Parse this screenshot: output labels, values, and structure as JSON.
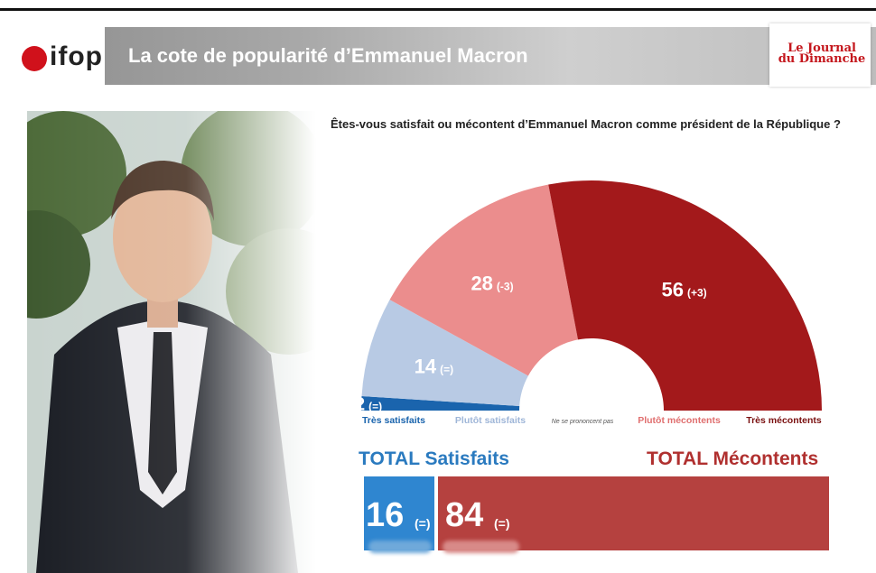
{
  "header": {
    "brand": "ifop",
    "title": "La cote de popularité d’Emmanuel Macron",
    "partner_line1": "Le Journal",
    "partner_line2": "du Dimanche"
  },
  "chart_data": {
    "type": "pie",
    "variant": "half-donut",
    "title": "Êtes-vous satisfait ou mécontent d’Emmanuel Macron comme président de la République ?",
    "categories": [
      "Très satisfaits",
      "Plutôt satisfaits",
      "Ne se prononcent pas",
      "Plutôt mécontents",
      "Très mécontents"
    ],
    "values": [
      2,
      14,
      0,
      28,
      56
    ],
    "changes": [
      "(=)",
      "(=)",
      "",
      "(-3)",
      "(+3)"
    ],
    "colors": [
      "#1a64ad",
      "#b8cae4",
      "#ffffff",
      "#eb8d8d",
      "#a3191b"
    ],
    "label_colors": [
      "#1a64ad",
      "#9fb6d8",
      "#555555",
      "#e06f6f",
      "#7a1010"
    ],
    "totals": {
      "satisfied_label": "TOTAL Satisfaits",
      "satisfied_value": 16,
      "satisfied_change": "(=)",
      "dissatisfied_label": "TOTAL Mécontents",
      "dissatisfied_value": 84,
      "dissatisfied_change": "(=)",
      "satisfied_color": "#2f86d0",
      "dissatisfied_color": "#b5413f"
    }
  }
}
